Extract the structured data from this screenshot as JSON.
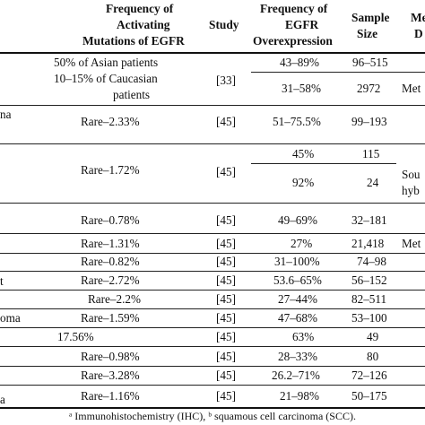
{
  "headers": {
    "freq_activating": [
      "Frequency of",
      "Activating",
      "Mutations of EGFR"
    ],
    "study": "Study",
    "freq_overexpr": [
      "Frequency of",
      "EGFR",
      "Overexpression"
    ],
    "sample_size": [
      "Sample",
      "Size"
    ],
    "method_partial": [
      "Me",
      "D"
    ]
  },
  "left_fragments": [
    "na",
    "t",
    "oma",
    "a"
  ],
  "rows": [
    {
      "act": "50% of Asian patients",
      "study": "",
      "over": "43–89%",
      "sample": "96–515",
      "method": ""
    },
    {
      "act": "10–15% of Caucasian patients",
      "act_lines": [
        "10–15% of Caucasian",
        "patients"
      ],
      "study": "[33]",
      "over": "31–58%",
      "sample": "2972",
      "method": "Met"
    },
    {
      "act": "Rare–2.33%",
      "study": "[45]",
      "over": "51–75.5%",
      "sample": "99–193",
      "method": ""
    },
    {
      "act": "",
      "study": "",
      "over": "45%",
      "sample": "115",
      "method": "Sou"
    },
    {
      "act": "Rare–1.72%",
      "study": "[45]",
      "over": "92%",
      "sample": "24",
      "method": "hyb"
    },
    {
      "act": "Rare–0.78%",
      "study": "[45]",
      "over": "49–69%",
      "sample": "32–181",
      "method": ""
    },
    {
      "act": "Rare–1.31%",
      "study": "[45]",
      "over": "27%",
      "sample": "21,418",
      "method": "Met"
    },
    {
      "act": "Rare–0.82%",
      "study": "[45]",
      "over": "31–100%",
      "sample": "74–98",
      "method": ""
    },
    {
      "act": "Rare–2.72%",
      "study": "[45]",
      "over": "53.6–65%",
      "sample": "56–152",
      "method": ""
    },
    {
      "act": "Rare–2.2%",
      "study": "[45]",
      "over": "27–44%",
      "sample": "82–511",
      "method": ""
    },
    {
      "act": "Rare–1.59%",
      "study": "[45]",
      "over": "47–68%",
      "sample": "53–100",
      "method": ""
    },
    {
      "act": "17.56%",
      "study": "[45]",
      "over": "63%",
      "sample": "49",
      "method": ""
    },
    {
      "act": "Rare–0.98%",
      "study": "[45]",
      "over": "28–33%",
      "sample": "80",
      "method": ""
    },
    {
      "act": "Rare–3.28%",
      "study": "[45]",
      "over": "26.2–71%",
      "sample": "72–126",
      "method": ""
    },
    {
      "act": "Rare–1.16%",
      "study": "[45]",
      "over": "21–98%",
      "sample": "50–175",
      "method": ""
    }
  ],
  "footnote": "ᵃ Immunohistochemistry (IHC), ᵇ squamous cell carcinoma (SCC)."
}
